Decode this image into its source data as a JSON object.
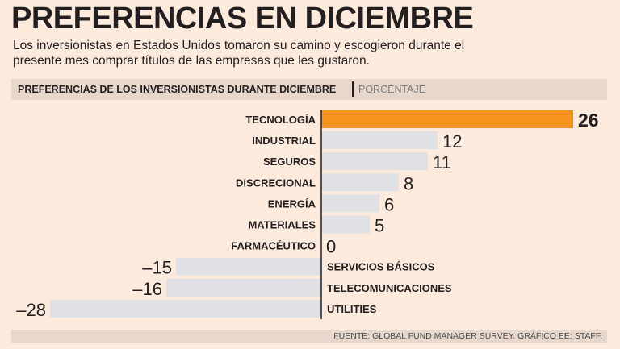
{
  "title": "PREFERENCIAS EN DICIEMBRE",
  "subtitle": "Los inversionistas en Estados Unidos tomaron su camino y escogieron durante el presente mes comprar títulos de las empresas que les gustaron.",
  "header": {
    "label": "PREFERENCIAS DE LOS INVERSIONISTAS DURANTE DICIEMBRE",
    "unit": "PORCENTAJE"
  },
  "footer": "FUENTE: GLOBAL FUND MANAGER SURVEY. GRÁFICO EE: STAFF.",
  "colors": {
    "background": "#fcebdc",
    "highlight_bar": "#f7941d",
    "bar": "#dfe1e4",
    "text": "#231f20"
  },
  "chart_data": {
    "type": "bar",
    "orientation": "horizontal",
    "title": "PREFERENCIAS DE LOS INVERSIONISTAS DURANTE DICIEMBRE",
    "unit": "PORCENTAJE",
    "categories": [
      "TECNOLOGÍA",
      "INDUSTRIAL",
      "SEGUROS",
      "DISCRECIONAL",
      "ENERGÍA",
      "MATERIALES",
      "FARMACÉUTICO",
      "SERVICIOS BÁSICOS",
      "TELECOMUNICACIONES",
      "UTILITIES"
    ],
    "values": [
      26,
      12,
      11,
      8,
      6,
      5,
      0,
      -15,
      -16,
      -28
    ],
    "value_labels": [
      "26",
      "12",
      "11",
      "8",
      "6",
      "5",
      "0",
      "–15",
      "–16",
      "–28"
    ],
    "highlight": "TECNOLOGÍA",
    "xlim": [
      -28,
      26
    ],
    "grid": false
  }
}
